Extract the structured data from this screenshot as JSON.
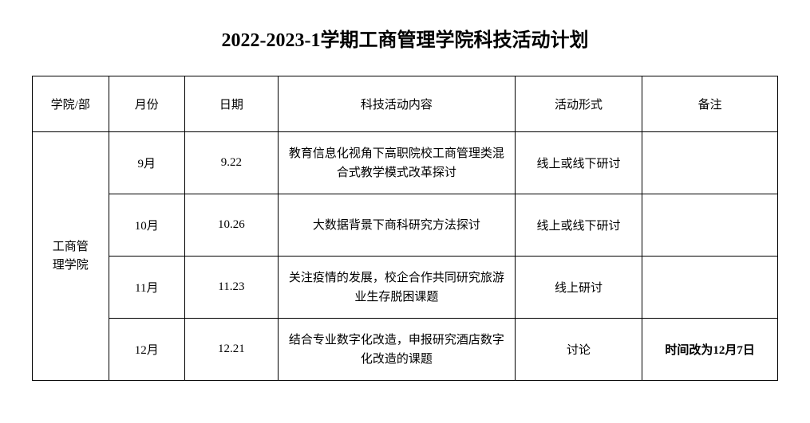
{
  "title": "2022-2023-1学期工商管理学院科技活动计划",
  "columns": {
    "dept": "学院/部",
    "month": "月份",
    "date": "日期",
    "content": "科技活动内容",
    "form": "活动形式",
    "note": "备注"
  },
  "department": "工商管\n理学院",
  "rows": [
    {
      "month": "9月",
      "date": "9.22",
      "content": "教育信息化视角下高职院校工商管理类混合式教学模式改革探讨",
      "form": "线上或线下研讨",
      "note": ""
    },
    {
      "month": "10月",
      "date": "10.26",
      "content": "大数据背景下商科研究方法探讨",
      "form": "线上或线下研讨",
      "note": ""
    },
    {
      "month": "11月",
      "date": "11.23",
      "content": "关注疫情的发展，校企合作共同研究旅游业生存脱困课题",
      "form": "线上研讨",
      "note": ""
    },
    {
      "month": "12月",
      "date": "12.21",
      "content": "结合专业数字化改造，申报研究酒店数字化改造的课题",
      "form": "讨论",
      "note": "时间改为12月7日"
    }
  ],
  "styling": {
    "title_fontsize": 24,
    "cell_fontsize": 15,
    "border_color": "#000000",
    "background_color": "#ffffff",
    "text_color": "#000000",
    "header_row_height": 70,
    "data_row_height": 78,
    "column_widths": {
      "dept": 90,
      "month": 90,
      "date": 110,
      "content": 280,
      "form": 150,
      "note": 160
    }
  }
}
